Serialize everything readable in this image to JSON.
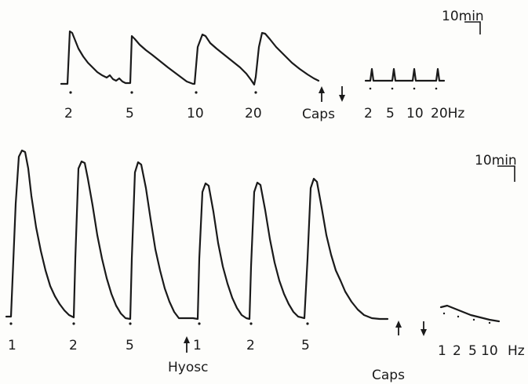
{
  "top_panel": {
    "scale_bar_label": "10min",
    "stim_labels": [
      "2",
      "5",
      "10",
      "20"
    ],
    "drug_label": "Caps",
    "post_labels": [
      "2",
      "5",
      "10",
      "20Hz"
    ]
  },
  "bottom_panel": {
    "scale_bar_label": "10min",
    "stim_labels": [
      "1",
      "2",
      "5",
      "1",
      "2",
      "5"
    ],
    "drug1_label": "Hyosc",
    "drug2_label": "Caps",
    "post_labels": [
      "1",
      "2",
      "5",
      "10",
      "Hz"
    ]
  }
}
